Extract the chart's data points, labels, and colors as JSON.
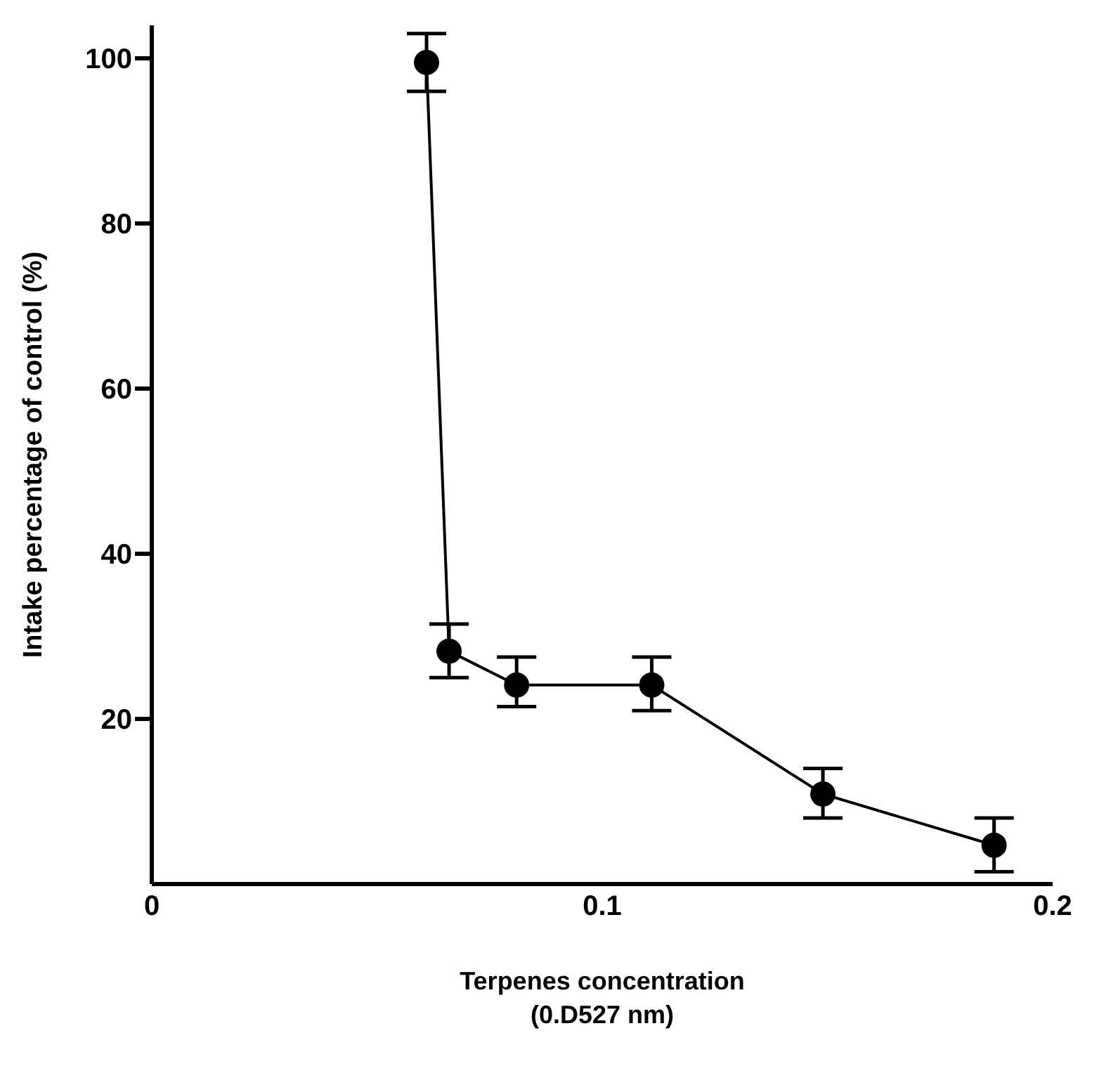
{
  "chart_data": {
    "type": "line",
    "xlabel": "Terpenes concentration\n(0.D527 nm)",
    "ylabel": "Intake percentage of control (%)",
    "x": [
      0.061,
      0.066,
      0.081,
      0.111,
      0.149,
      0.187
    ],
    "series": [
      {
        "color": "#000000",
        "values": [
          99.5,
          28.2,
          24.1,
          24.1,
          10.9,
          4.7
        ],
        "errors": [
          [
            96,
            103
          ],
          [
            25,
            31.5
          ],
          [
            21.5,
            27.5
          ],
          [
            21,
            27.5
          ],
          [
            8,
            14
          ],
          [
            1.5,
            8
          ]
        ]
      }
    ],
    "xlim": [
      0,
      0.2
    ],
    "xticks": [
      0,
      0.1,
      0.2
    ],
    "ylim": [
      0,
      104
    ],
    "yticks": [
      20,
      40,
      60,
      80,
      100
    ],
    "grid": false,
    "legend": false,
    "marker": "circle",
    "line_style": "solid"
  }
}
